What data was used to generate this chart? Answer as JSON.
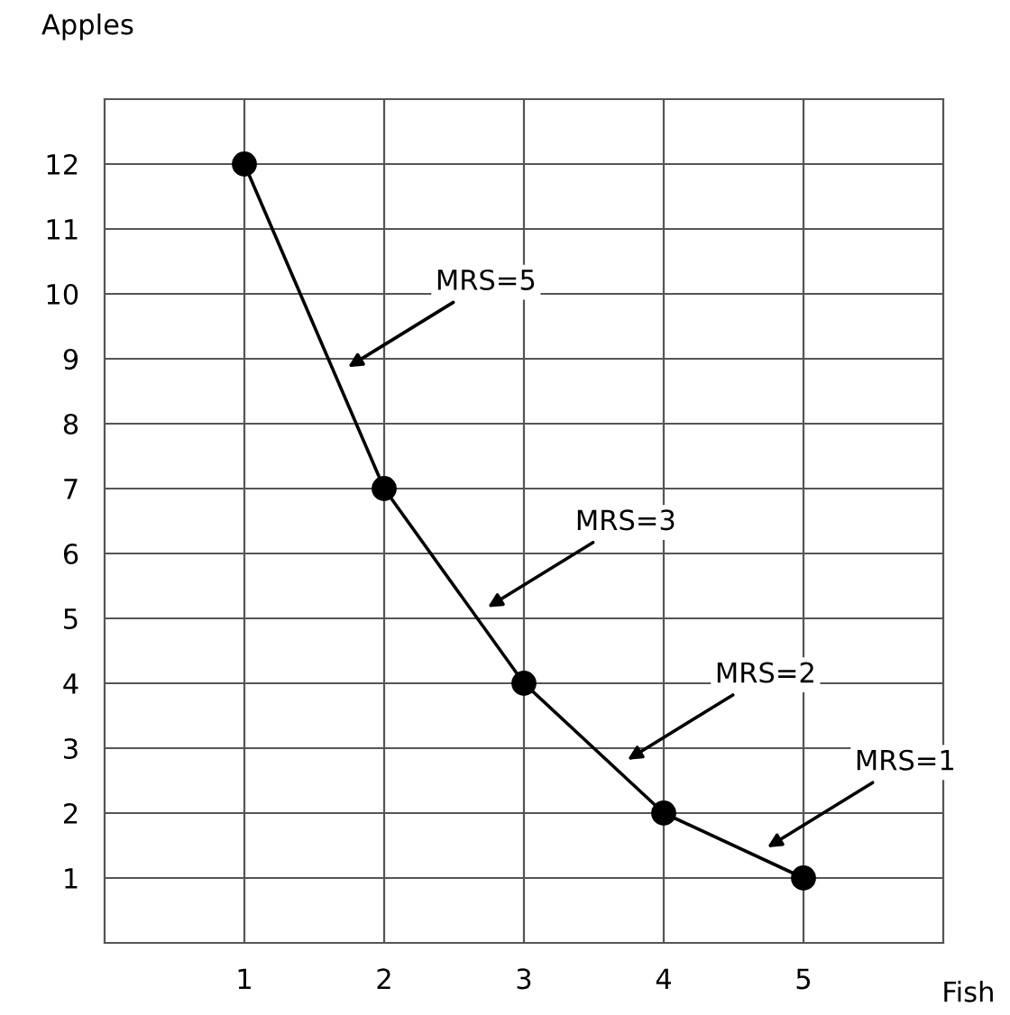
{
  "chart_data": {
    "type": "line",
    "xlabel": "Fish",
    "ylabel": "Apples",
    "x": [
      1,
      2,
      3,
      4,
      5
    ],
    "series": [
      {
        "color": "#000000",
        "values": [
          12,
          7,
          4,
          2,
          1
        ]
      }
    ],
    "xlim": [
      0,
      6
    ],
    "ylim": [
      0,
      13
    ],
    "xticks": [
      1,
      2,
      3,
      4,
      5
    ],
    "yticks": [
      1,
      2,
      3,
      4,
      5,
      6,
      7,
      8,
      9,
      10,
      11,
      12
    ],
    "grid": true,
    "marker": "circle",
    "line_style": "solid",
    "legend": false,
    "annotations": [
      "MRS=5",
      "MRS=3",
      "MRS=2",
      "MRS=1"
    ]
  }
}
